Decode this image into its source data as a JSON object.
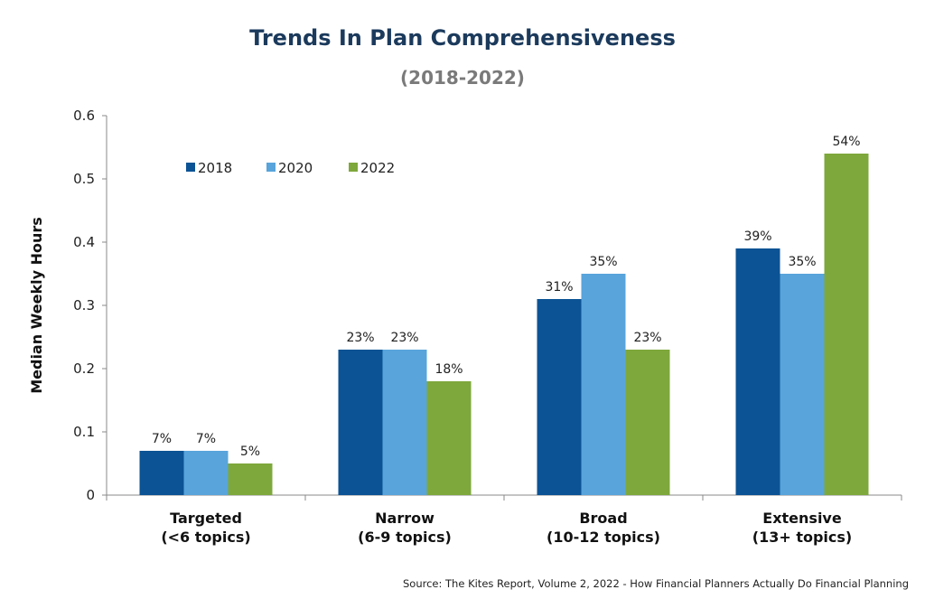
{
  "chart_data": {
    "type": "bar",
    "title": "Trends In Plan Comprehensiveness",
    "subtitle": "(2018-2022)",
    "xlabel": "",
    "ylabel": "Median Weekly Hours",
    "ylim": [
      0,
      0.6
    ],
    "yticks": [
      "0",
      "0.1",
      "0.2",
      "0.3",
      "0.4",
      "0.5",
      "0.6"
    ],
    "categories": [
      [
        "Targeted",
        "(<6 topics)"
      ],
      [
        "Narrow",
        "(6-9 topics)"
      ],
      [
        "Broad",
        "(10-12 topics)"
      ],
      [
        "Extensive",
        "(13+ topics)"
      ]
    ],
    "series": [
      {
        "name": "2018",
        "color": "#0b5394",
        "values": [
          0.07,
          0.23,
          0.31,
          0.39
        ],
        "labels": [
          "7%",
          "23%",
          "31%",
          "39%"
        ]
      },
      {
        "name": "2020",
        "color": "#58a4db",
        "values": [
          0.07,
          0.23,
          0.35,
          0.35
        ],
        "labels": [
          "7%",
          "23%",
          "35%",
          "35%"
        ]
      },
      {
        "name": "2022",
        "color": "#7ea83c",
        "values": [
          0.05,
          0.18,
          0.23,
          0.54
        ],
        "labels": [
          "5%",
          "18%",
          "23%",
          "54%"
        ]
      }
    ],
    "legend_position": "top-left",
    "grid": false,
    "source": "Source: The Kites Report, Volume 2, 2022 - How Financial Planners Actually Do Financial Planning"
  }
}
